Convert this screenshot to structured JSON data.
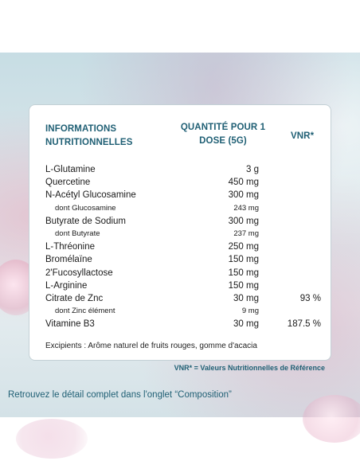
{
  "header": {
    "col1": "INFORMATIONS NUTRITIONNELLES",
    "col2": "QUANTITÉ POUR 1 DOSE (5G)",
    "col3": "VNR*"
  },
  "rows": [
    {
      "name": "L-Glutamine",
      "qty": "3 g",
      "vnr": "",
      "sub": false
    },
    {
      "name": "Quercetine",
      "qty": "450 mg",
      "vnr": "",
      "sub": false
    },
    {
      "name": "N-Acétyl Glucosamine",
      "qty": "300 mg",
      "vnr": "",
      "sub": false
    },
    {
      "name": "dont Glucosamine",
      "qty": "243 mg",
      "vnr": "",
      "sub": true
    },
    {
      "name": "Butyrate de Sodium",
      "qty": "300 mg",
      "vnr": "",
      "sub": false
    },
    {
      "name": "dont Butyrate",
      "qty": "237 mg",
      "vnr": "",
      "sub": true
    },
    {
      "name": "L-Thréonine",
      "qty": "250 mg",
      "vnr": "",
      "sub": false
    },
    {
      "name": "Bromélaïne",
      "qty": "150 mg",
      "vnr": "",
      "sub": false
    },
    {
      "name": "2'Fucosyllactose",
      "qty": "150 mg",
      "vnr": "",
      "sub": false
    },
    {
      "name": "L-Arginine",
      "qty": "150 mg",
      "vnr": "",
      "sub": false
    },
    {
      "name": "Citrate de Znc",
      "qty": "30 mg",
      "vnr": "93 %",
      "sub": false
    },
    {
      "name": "dont Zinc élément",
      "qty": "9 mg",
      "vnr": "",
      "sub": true
    },
    {
      "name": "Vitamine B3",
      "qty": "30 mg",
      "vnr": "187.5 %",
      "sub": false
    }
  ],
  "excipients": "Excipients : Arôme naturel de fruits rouges, gomme d'acacia",
  "footnote": "VNR* = Valeurs Nutritionnelles de Référence",
  "retrouvez": "Retrouvez le détail complet dans l'onglet “Composition”",
  "colors": {
    "accent": "#1f5f74",
    "card_border": "#c4d1d6"
  }
}
